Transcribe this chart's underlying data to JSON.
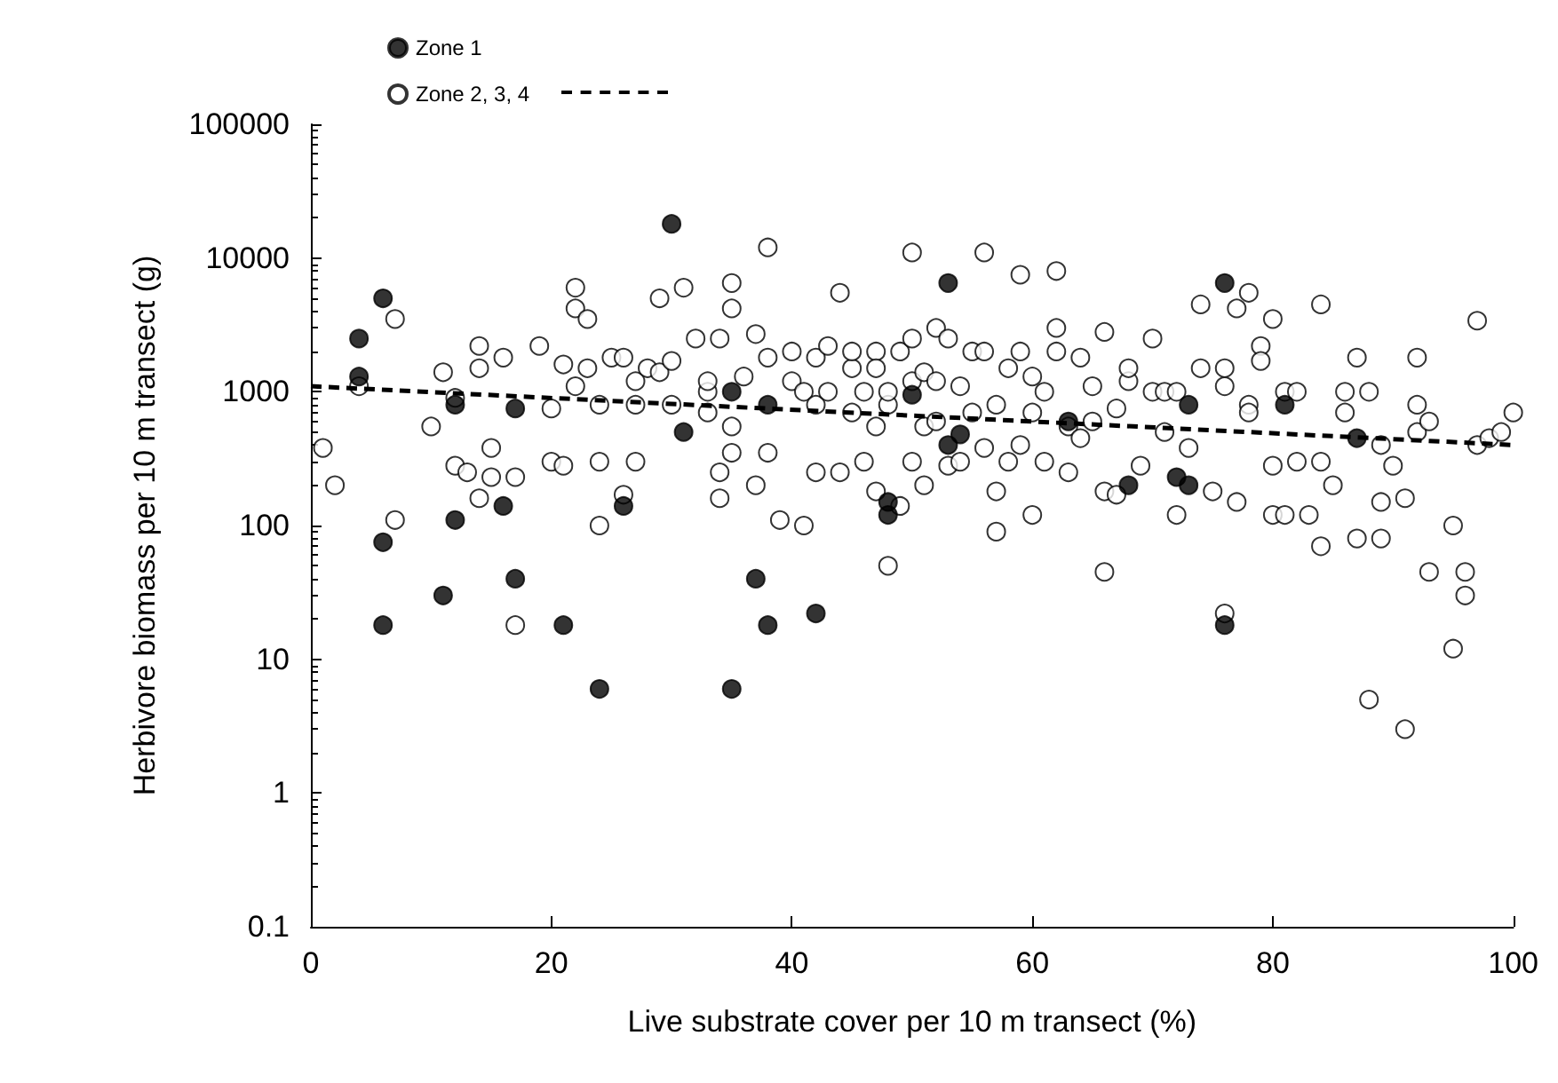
{
  "chart_data": {
    "type": "scatter",
    "xlabel": "Live substrate cover per 10 m transect (%)",
    "ylabel": "Herbivore biomass per 10 m transect (g)",
    "log": "y",
    "xlim": [
      0,
      100
    ],
    "xticks": [
      0,
      20,
      40,
      60,
      80,
      100
    ],
    "ylim": [
      0.1,
      100000
    ],
    "yticks": [
      0.1,
      1,
      10,
      100,
      1000,
      10000,
      100000
    ],
    "grid": false,
    "legend": "top left",
    "marker": "circle",
    "series": [
      {
        "name": "Zone 1",
        "color": "#000000",
        "x": [
          4,
          4,
          6,
          6,
          6,
          11,
          12,
          12,
          16,
          17,
          17,
          21,
          24,
          26,
          30,
          31,
          35,
          35,
          37,
          38,
          38,
          42,
          48,
          48,
          50,
          53,
          53,
          54,
          63,
          68,
          72,
          73,
          73,
          76,
          76,
          81,
          87
        ],
        "values": [
          2500,
          1300,
          5000,
          75,
          18,
          30,
          110,
          800,
          140,
          750,
          40,
          18,
          6,
          140,
          18000,
          500,
          1000,
          6,
          40,
          18,
          800,
          22,
          120,
          150,
          950,
          6500,
          400,
          480,
          600,
          200,
          230,
          200,
          800,
          6500,
          18,
          800,
          450
        ]
      },
      {
        "name": "Zone 2, 3, 4",
        "color": "#000000",
        "x": [
          1,
          2,
          4,
          7,
          7,
          10,
          11,
          12,
          12,
          13,
          14,
          14,
          14,
          15,
          15,
          16,
          17,
          17,
          19,
          20,
          20,
          21,
          21,
          22,
          22,
          22,
          23,
          23,
          24,
          24,
          24,
          25,
          26,
          26,
          27,
          27,
          27,
          28,
          29,
          29,
          30,
          30,
          31,
          32,
          33,
          33,
          33,
          34,
          34,
          34,
          35,
          35,
          35,
          35,
          36,
          37,
          37,
          38,
          38,
          38,
          39,
          40,
          40,
          41,
          41,
          42,
          42,
          42,
          43,
          43,
          44,
          44,
          45,
          45,
          45,
          46,
          46,
          47,
          47,
          47,
          47,
          48,
          48,
          48,
          49,
          49,
          50,
          50,
          50,
          50,
          51,
          51,
          51,
          52,
          52,
          52,
          53,
          53,
          54,
          54,
          55,
          55,
          56,
          56,
          56,
          57,
          57,
          57,
          58,
          58,
          59,
          59,
          59,
          60,
          60,
          60,
          61,
          61,
          62,
          62,
          62,
          63,
          63,
          64,
          64,
          65,
          65,
          66,
          66,
          66,
          67,
          67,
          68,
          68,
          69,
          70,
          70,
          71,
          71,
          72,
          72,
          73,
          74,
          74,
          75,
          76,
          76,
          76,
          77,
          77,
          78,
          78,
          78,
          79,
          79,
          80,
          80,
          80,
          81,
          81,
          82,
          82,
          83,
          84,
          84,
          84,
          85,
          86,
          86,
          87,
          87,
          88,
          88,
          89,
          89,
          89,
          90,
          91,
          91,
          92,
          92,
          92,
          93,
          93,
          95,
          95,
          96,
          96,
          97,
          97,
          98,
          99,
          100
        ],
        "values": [
          380,
          200,
          1100,
          3500,
          110,
          550,
          1400,
          280,
          900,
          250,
          1500,
          2200,
          160,
          380,
          230,
          1800,
          230,
          18,
          2200,
          300,
          750,
          1600,
          280,
          6000,
          4200,
          1100,
          1500,
          3500,
          100,
          300,
          800,
          1800,
          1800,
          170,
          800,
          1200,
          300,
          1500,
          1400,
          5000,
          1700,
          800,
          6000,
          2500,
          1000,
          1200,
          700,
          250,
          2500,
          160,
          6500,
          4200,
          350,
          550,
          1300,
          2700,
          200,
          12000,
          1800,
          350,
          110,
          2000,
          1200,
          1000,
          100,
          1800,
          800,
          250,
          2200,
          1000,
          5500,
          250,
          1500,
          2000,
          700,
          1000,
          300,
          2000,
          1500,
          550,
          180,
          50,
          800,
          1000,
          2000,
          140,
          11000,
          2500,
          1200,
          300,
          1400,
          550,
          200,
          1200,
          3000,
          600,
          2500,
          280,
          1100,
          300,
          2000,
          700,
          11000,
          2000,
          380,
          800,
          180,
          90,
          1500,
          300,
          7500,
          2000,
          400,
          700,
          1300,
          120,
          1000,
          300,
          8000,
          3000,
          2000,
          550,
          250,
          1800,
          450,
          600,
          1100,
          2800,
          180,
          45,
          750,
          170,
          1200,
          1500,
          280,
          2500,
          1000,
          1000,
          500,
          120,
          1000,
          380,
          4500,
          1500,
          180,
          1500,
          1100,
          22,
          4200,
          150,
          5500,
          800,
          700,
          2200,
          1700,
          3500,
          280,
          120,
          1000,
          120,
          300,
          1000,
          120,
          4500,
          70,
          300,
          200,
          700,
          1000,
          1800,
          80,
          5,
          1000,
          150,
          400,
          80,
          280,
          3,
          160,
          1800,
          800,
          500,
          600,
          45,
          100,
          12,
          45,
          30,
          3400,
          400,
          450,
          500,
          700
        ]
      },
      {
        "type": "line",
        "color": "#000000",
        "line_style": "dashed",
        "marker": "none",
        "x": [
          0,
          100
        ],
        "values": [
          1100,
          400
        ]
      }
    ]
  }
}
